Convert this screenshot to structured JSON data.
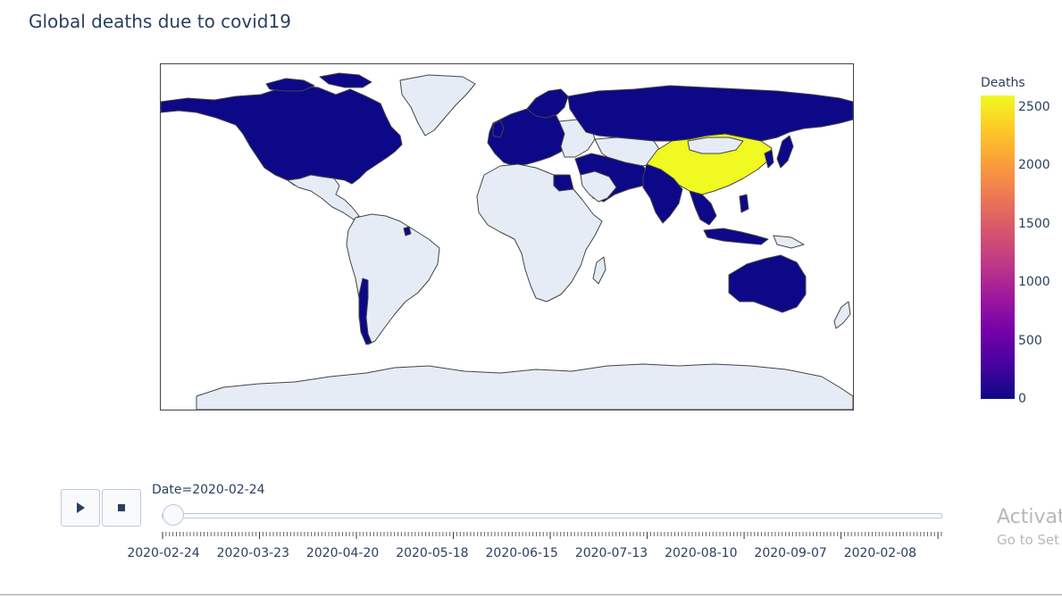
{
  "title": "Global deaths due to covid19",
  "colorbar": {
    "title": "Deaths",
    "min": 0,
    "max": 2600,
    "ticks": [
      "2500",
      "2000",
      "1500",
      "1000",
      "500",
      "0"
    ],
    "colorscale": [
      "#0d0887",
      "#46039f",
      "#7201a8",
      "#9c179e",
      "#bd3786",
      "#d8576b",
      "#ed7953",
      "#fb9f3a",
      "#fdca26",
      "#f0f921"
    ]
  },
  "map": {
    "land_color": "#e5ecf6",
    "border_color": "#444444",
    "highlight_colors": {
      "low": "#0d0887",
      "high": "#f0f921"
    },
    "highlighted_regions": [
      "North America",
      "Europe",
      "Russia",
      "Middle East",
      "India",
      "Southeast Asia",
      "Australia",
      "Chile",
      "China"
    ]
  },
  "slider": {
    "label": "Date=2020-02-24",
    "current": "2020-02-24",
    "position": 0,
    "tick_labels": [
      "2020-02-24",
      "2020-03-23",
      "2020-04-20",
      "2020-05-18",
      "2020-06-15",
      "2020-07-13",
      "2020-08-10",
      "2020-09-07",
      "2020-02-08"
    ]
  },
  "controls": {
    "play_icon": "play-icon",
    "stop_icon": "stop-icon"
  },
  "watermark": {
    "line1": "Activat",
    "line2": "Go to Set"
  }
}
